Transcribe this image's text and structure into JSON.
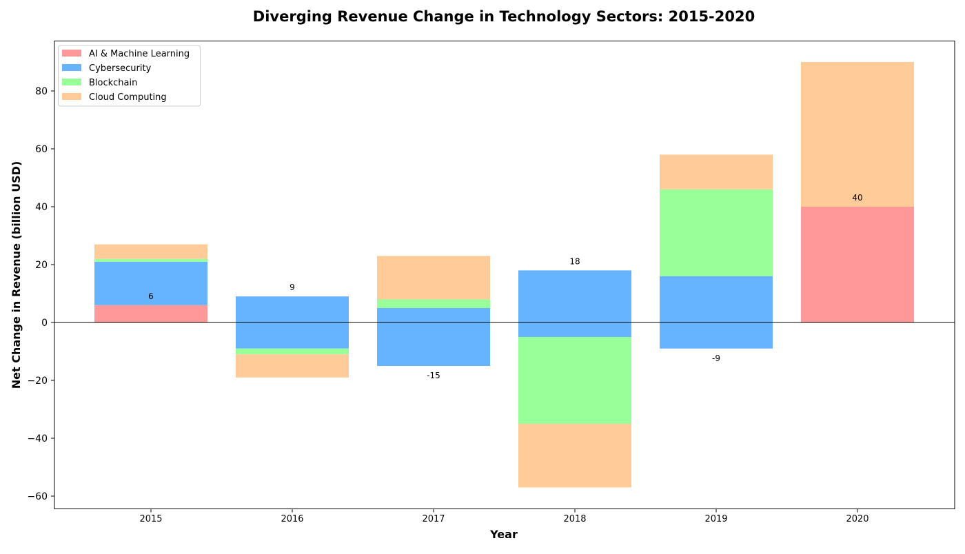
{
  "chart_data": {
    "type": "bar",
    "stacked": true,
    "diverging": true,
    "title": "Diverging Revenue Change in Technology Sectors: 2015-2020",
    "xlabel": "Year",
    "ylabel": "Net Change in Revenue (billion USD)",
    "categories": [
      "2015",
      "2016",
      "2017",
      "2018",
      "2019",
      "2020"
    ],
    "ylim": [
      -64,
      98
    ],
    "yticks": [
      -60,
      -40,
      -20,
      0,
      20,
      40,
      60,
      80
    ],
    "ytick_labels": [
      "−60",
      "−40",
      "−20",
      "0",
      "20",
      "40",
      "60",
      "80"
    ],
    "grid": false,
    "legend_position": "top-left",
    "series": [
      {
        "name": "AI & Machine Learning",
        "color": "#ff9999",
        "values": [
          6,
          0,
          0,
          0,
          0,
          40
        ]
      },
      {
        "name": "Cybersecurity",
        "color": "#66b3ff",
        "values": [
          15,
          9,
          -15,
          18,
          -9,
          0
        ]
      },
      {
        "name": "Blockchain",
        "color": "#99ff99",
        "values": [
          1,
          -2,
          3,
          -30,
          30,
          0
        ]
      },
      {
        "name": "Cloud Computing",
        "color": "#ffcc99",
        "values": [
          5,
          -8,
          15,
          -22,
          12,
          50
        ]
      }
    ],
    "bar_segments": [
      {
        "category": "2015",
        "series": "AI & Machine Learning",
        "from": 0,
        "to": 6
      },
      {
        "category": "2015",
        "series": "Cybersecurity",
        "from": 6,
        "to": 21
      },
      {
        "category": "2015",
        "series": "Blockchain",
        "from": 21,
        "to": 22
      },
      {
        "category": "2015",
        "series": "Cloud Computing",
        "from": 22,
        "to": 27
      },
      {
        "category": "2016",
        "series": "Cybersecurity",
        "from": -9,
        "to": 9
      },
      {
        "category": "2016",
        "series": "Blockchain",
        "from": -11,
        "to": -9
      },
      {
        "category": "2016",
        "series": "Cloud Computing",
        "from": -19,
        "to": -11
      },
      {
        "category": "2017",
        "series": "Cybersecurity",
        "from": -15,
        "to": 5
      },
      {
        "category": "2017",
        "series": "Blockchain",
        "from": 5,
        "to": 8
      },
      {
        "category": "2017",
        "series": "Cloud Computing",
        "from": 8,
        "to": 23
      },
      {
        "category": "2018",
        "series": "Cybersecurity",
        "from": -5,
        "to": 18
      },
      {
        "category": "2018",
        "series": "Blockchain",
        "from": -35,
        "to": -5
      },
      {
        "category": "2018",
        "series": "Cloud Computing",
        "from": -57,
        "to": -35
      },
      {
        "category": "2019",
        "series": "Cybersecurity",
        "from": -9,
        "to": 16
      },
      {
        "category": "2019",
        "series": "Blockchain",
        "from": 16,
        "to": 46
      },
      {
        "category": "2019",
        "series": "Cloud Computing",
        "from": 46,
        "to": 58
      },
      {
        "category": "2020",
        "series": "AI & Machine Learning",
        "from": 0,
        "to": 40
      },
      {
        "category": "2020",
        "series": "Cloud Computing",
        "from": 40,
        "to": 90
      }
    ],
    "data_labels": [
      {
        "category": "2015",
        "text": "6",
        "value": 6
      },
      {
        "category": "2016",
        "text": "9",
        "value": 9
      },
      {
        "category": "2017",
        "text": "-15",
        "value": -15
      },
      {
        "category": "2018",
        "text": "18",
        "value": 18
      },
      {
        "category": "2019",
        "text": "-9",
        "value": -9
      },
      {
        "category": "2020",
        "text": "40",
        "value": 40
      }
    ]
  }
}
